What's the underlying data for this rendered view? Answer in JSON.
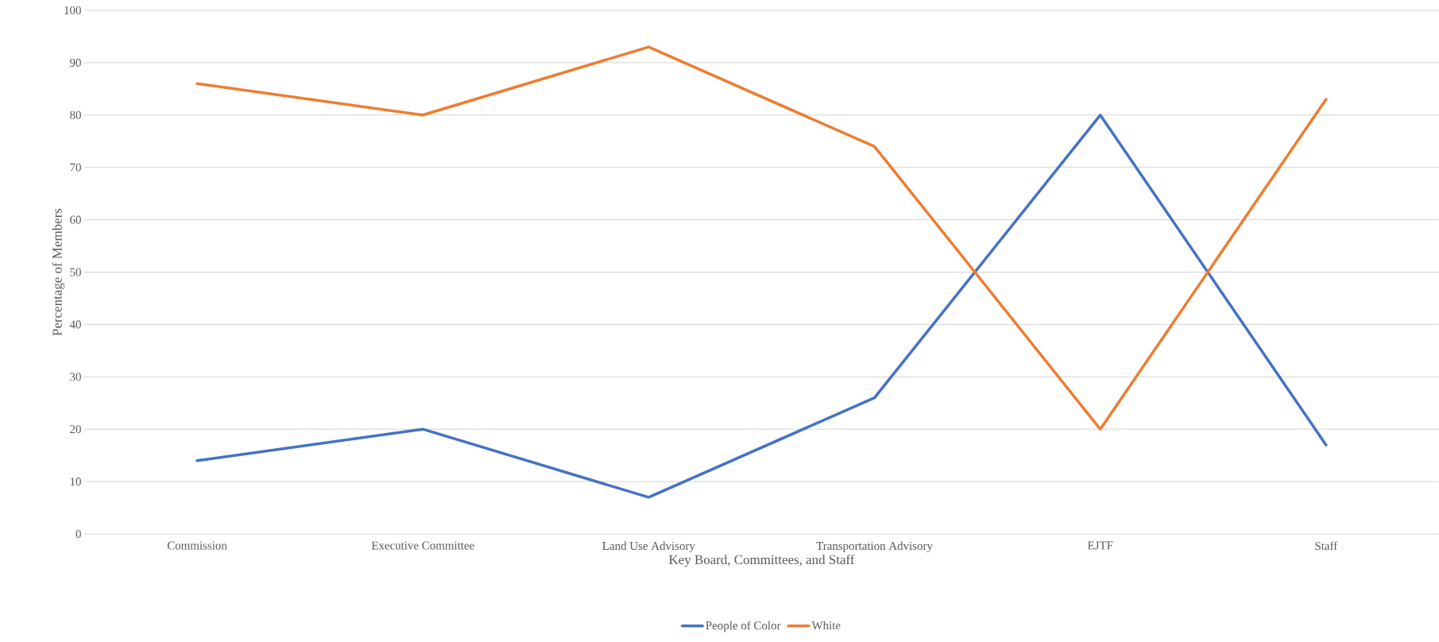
{
  "chart_data": {
    "type": "line",
    "xlabel": "Key Board, Committees, and Staff",
    "ylabel": "Percentage of Members",
    "categories": [
      "Commission",
      "Executive Committee",
      "Land Use Advisory",
      "Transportation Advisory",
      "EJTF",
      "Staff"
    ],
    "series": [
      {
        "name": "People of Color",
        "color": "#4472c4",
        "values": [
          14,
          20,
          7,
          26,
          80,
          17
        ]
      },
      {
        "name": "White",
        "color": "#ed7d31",
        "values": [
          86,
          80,
          93,
          74,
          20,
          83
        ]
      }
    ],
    "ylim": [
      0,
      100
    ],
    "yticks": [
      0,
      10,
      20,
      30,
      40,
      50,
      60,
      70,
      80,
      90,
      100
    ],
    "grid": "y",
    "legend": "bottom"
  }
}
